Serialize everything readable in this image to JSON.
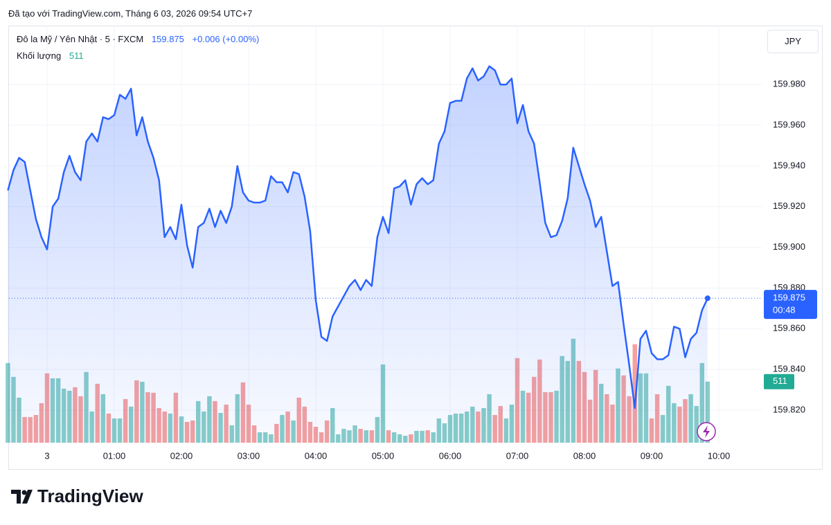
{
  "header": {
    "created": "Đã tạo với TradingView.com, Tháng 6 03, 2026 09:54 UTC+7",
    "logo": "TradingView",
    "currency_button": "JPY"
  },
  "chart_data": {
    "type": "line",
    "title": "Đô la Mỹ / Yên Nhật · 5 · FXCM",
    "change_label": "+0.006 (+0.00%)",
    "countdown": "00:48",
    "color": "#2962ff",
    "grid": true,
    "categories": [
      null,
      null,
      null,
      null,
      null,
      null,
      null,
      "3",
      null,
      null,
      null,
      null,
      null,
      null,
      null,
      null,
      null,
      null,
      null,
      "01:00",
      null,
      null,
      null,
      null,
      null,
      null,
      null,
      null,
      null,
      null,
      null,
      "02:00",
      null,
      null,
      null,
      null,
      null,
      null,
      null,
      null,
      null,
      null,
      null,
      "03:00",
      null,
      null,
      null,
      null,
      null,
      null,
      null,
      null,
      null,
      null,
      null,
      "04:00",
      null,
      null,
      null,
      null,
      null,
      null,
      null,
      null,
      null,
      null,
      null,
      "05:00",
      null,
      null,
      null,
      null,
      null,
      null,
      null,
      null,
      null,
      null,
      null,
      "06:00",
      null,
      null,
      null,
      null,
      null,
      null,
      null,
      null,
      null,
      null,
      null,
      "07:00",
      null,
      null,
      null,
      null,
      null,
      null,
      null,
      null,
      null,
      null,
      null,
      "08:00",
      null,
      null,
      null,
      null,
      null,
      null,
      null,
      null,
      null,
      null,
      null,
      "09:00",
      null,
      null,
      null,
      null,
      null,
      null,
      null,
      null,
      null,
      null,
      null,
      "10:00"
    ],
    "values": [
      159.928,
      159.938,
      159.944,
      159.942,
      159.928,
      159.914,
      159.905,
      159.899,
      159.92,
      159.924,
      159.937,
      159.945,
      159.937,
      159.933,
      159.952,
      159.956,
      159.952,
      159.964,
      159.963,
      159.965,
      159.975,
      159.973,
      159.978,
      159.955,
      159.964,
      159.952,
      159.944,
      159.933,
      159.905,
      159.91,
      159.904,
      159.921,
      159.901,
      159.89,
      159.91,
      159.912,
      159.919,
      159.91,
      159.918,
      159.912,
      159.92,
      159.94,
      159.927,
      159.923,
      159.922,
      159.922,
      159.923,
      159.935,
      159.932,
      159.932,
      159.927,
      159.937,
      159.936,
      159.925,
      159.908,
      159.874,
      159.856,
      159.854,
      159.866,
      159.871,
      159.876,
      159.881,
      159.884,
      159.879,
      159.884,
      159.881,
      159.905,
      159.915,
      159.907,
      159.929,
      159.93,
      159.933,
      159.921,
      159.931,
      159.934,
      159.931,
      159.933,
      159.951,
      159.957,
      159.971,
      159.972,
      159.972,
      159.983,
      159.988,
      159.982,
      159.984,
      159.989,
      159.987,
      159.98,
      159.98,
      159.983,
      159.961,
      159.97,
      159.957,
      159.951,
      159.932,
      159.912,
      159.905,
      159.906,
      159.913,
      159.924,
      159.949,
      159.94,
      159.931,
      159.923,
      159.91,
      159.915,
      159.898,
      159.881,
      159.883,
      159.862,
      159.842,
      159.821,
      159.855,
      159.859,
      159.848,
      159.845,
      159.845,
      159.847,
      159.861,
      159.86,
      159.846,
      159.855,
      159.858,
      159.869,
      159.875,
      null,
      null
    ],
    "ylim": [
      159.804,
      160.009
    ],
    "yticks": [
      {
        "value": 159.82,
        "label": "159.820"
      },
      {
        "value": 159.84,
        "label": "159.840"
      },
      {
        "value": 159.86,
        "label": "159.860"
      },
      {
        "value": 159.88,
        "label": "159.880"
      },
      {
        "value": 159.9,
        "label": "159.900"
      },
      {
        "value": 159.92,
        "label": "159.920"
      },
      {
        "value": 159.94,
        "label": "159.940"
      },
      {
        "value": 159.96,
        "label": "159.960"
      },
      {
        "value": 159.98,
        "label": "159.980"
      }
    ],
    "volume": {
      "name": "Khối lượng",
      "up_color": "rgba(38,166,154,0.55)",
      "down_color": "rgba(239,83,80,0.55)",
      "label_color": "#22ab94",
      "ylim": [
        0,
        1100
      ],
      "values": [
        667,
        551,
        377,
        215,
        215,
        232,
        331,
        580,
        539,
        539,
        452,
        435,
        464,
        389,
        592,
        261,
        493,
        406,
        244,
        203,
        203,
        365,
        302,
        522,
        510,
        423,
        418,
        290,
        261,
        244,
        418,
        220,
        174,
        186,
        348,
        261,
        389,
        348,
        249,
        319,
        145,
        406,
        505,
        319,
        145,
        87,
        87,
        70,
        157,
        232,
        261,
        186,
        377,
        302,
        174,
        133,
        87,
        186,
        290,
        70,
        116,
        104,
        145,
        116,
        104,
        104,
        215,
        655,
        104,
        87,
        70,
        58,
        70,
        99,
        99,
        104,
        87,
        203,
        162,
        232,
        244,
        244,
        261,
        302,
        261,
        290,
        406,
        232,
        307,
        203,
        319,
        708,
        435,
        418,
        551,
        696,
        423,
        423,
        435,
        725,
        684,
        870,
        684,
        592,
        360,
        609,
        493,
        406,
        319,
        621,
        563,
        389,
        824,
        580,
        580,
        203,
        406,
        232,
        476,
        331,
        302,
        365,
        406,
        307,
        667,
        511,
        null,
        null
      ]
    }
  }
}
